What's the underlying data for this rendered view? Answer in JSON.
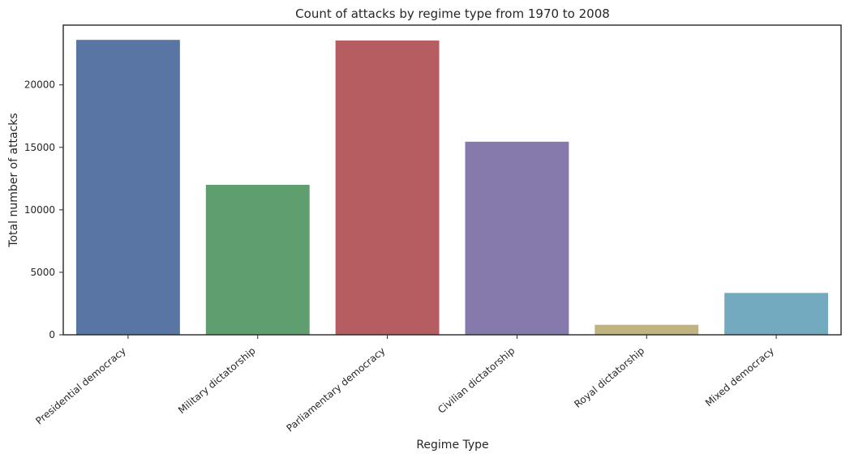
{
  "chart_data": {
    "type": "bar",
    "title": "Count of attacks by regime type from 1970 to 2008",
    "xlabel": "Regime Type",
    "ylabel": "Total number of attacks",
    "categories": [
      "Presidential democracy",
      "Military dictatorship",
      "Parliamentary democracy",
      "Civilian dictatorship",
      "Royal dictatorship",
      "Mixed democracy"
    ],
    "values": [
      23600,
      12000,
      23550,
      15450,
      800,
      3350
    ],
    "colors": [
      "#5975a4",
      "#5f9e6e",
      "#b55d60",
      "#857aab",
      "#c1b37f",
      "#73aabf"
    ],
    "yticks": [
      0,
      5000,
      10000,
      15000,
      20000
    ],
    "ylim": [
      0,
      24780
    ],
    "grid": false,
    "legend": false
  }
}
